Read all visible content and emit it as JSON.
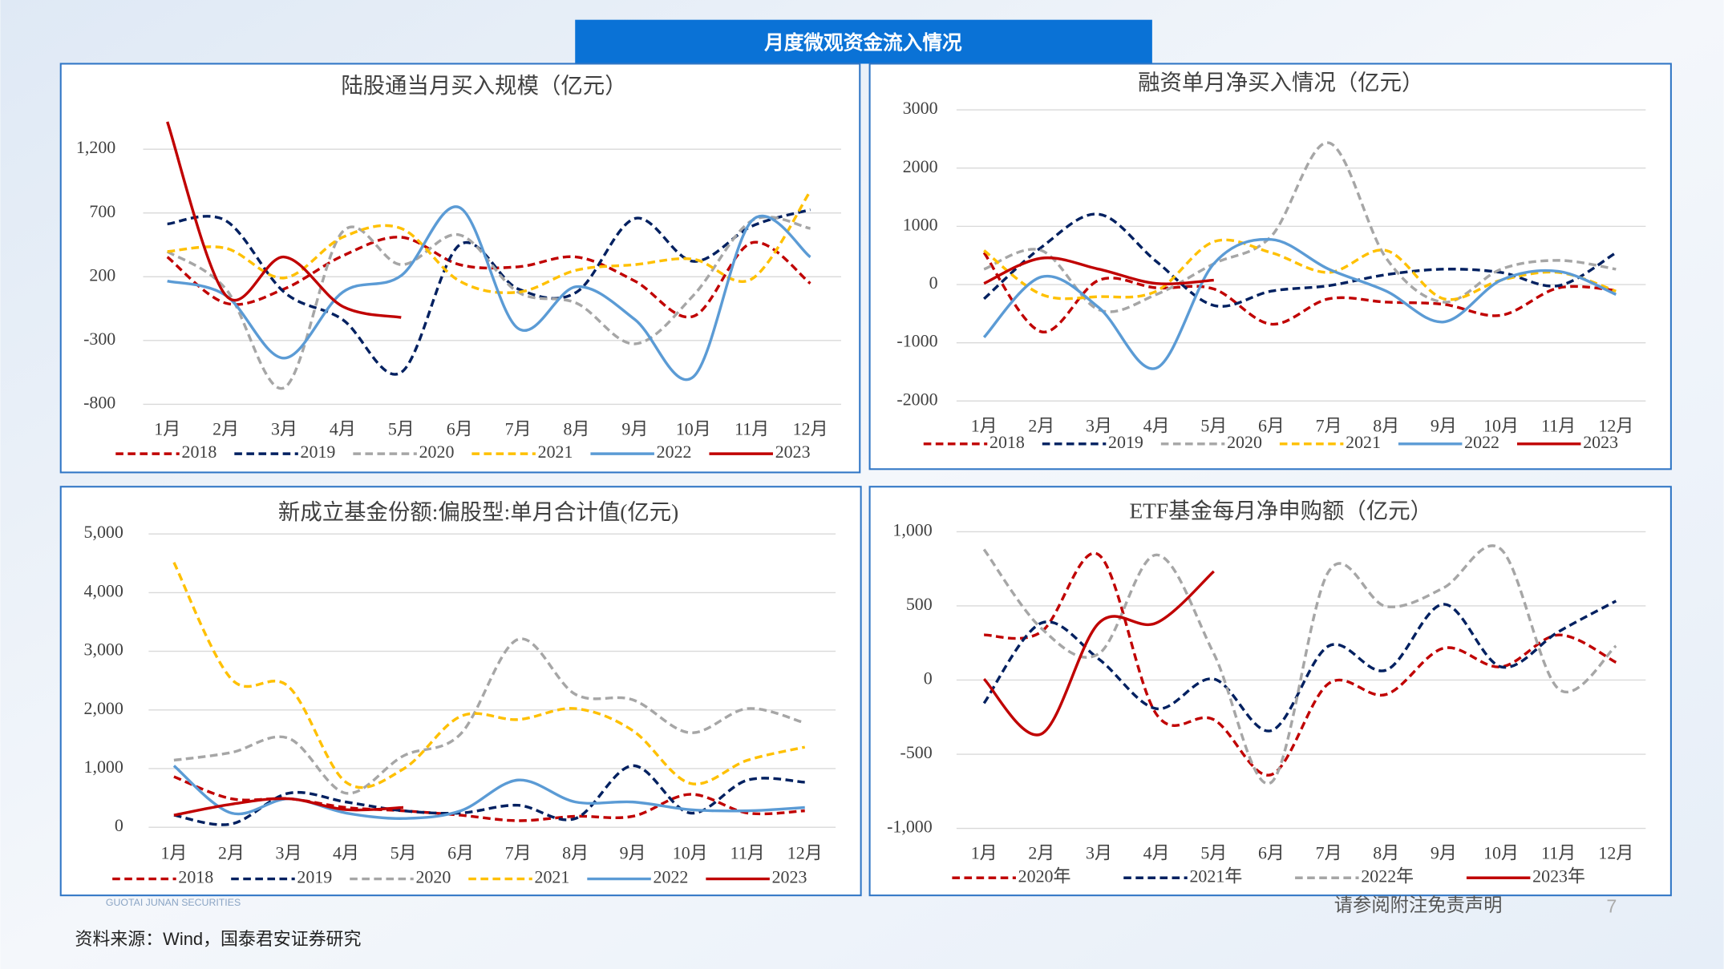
{
  "header": {
    "title": "月度微观资金流入情况"
  },
  "footer": {
    "source": "资料来源：Wind，国泰君安证券研究",
    "disclaimer": "请参阅附注免责声明",
    "page": "7",
    "logo": "GUOTAI JUNAN SECURITIES"
  },
  "chart_data": [
    {
      "type": "line",
      "title": "陆股通当月买入规模（亿元）",
      "categories": [
        "1月",
        "2月",
        "3月",
        "4月",
        "5月",
        "6月",
        "7月",
        "8月",
        "9月",
        "10月",
        "11月",
        "12月"
      ],
      "ylim": [
        -800,
        1500
      ],
      "yticks": [
        -800,
        -300,
        200,
        700,
        {
          "value": 1200,
          "label": "1,200"
        }
      ],
      "grid": true,
      "series": [
        {
          "name": "2018",
          "color": "#c00000",
          "dash": true,
          "values": [
            355,
            -7,
            105,
            364,
            510,
            295,
            278,
            355,
            166,
            -110,
            467,
            148
          ]
        },
        {
          "name": "2019",
          "color": "#002060",
          "dash": true,
          "values": [
            614,
            640,
            79,
            -136,
            -550,
            450,
            105,
            79,
            657,
            321,
            597,
            726
          ]
        },
        {
          "name": "2020",
          "color": "#a6a6a6",
          "dash": true,
          "values": [
            398,
            105,
            -670,
            554,
            295,
            528,
            79,
            -7,
            -326,
            54,
            640,
            579
          ]
        },
        {
          "name": "2021",
          "color": "#ffc000",
          "dash": true,
          "values": [
            398,
            424,
            191,
            510,
            579,
            166,
            79,
            252,
            295,
            338,
            183,
            872
          ]
        },
        {
          "name": "2022",
          "color": "#5b9bd5",
          "dash": false,
          "values": [
            166,
            54,
            -438,
            79,
            209,
            743,
            -205,
            122,
            -136,
            -584,
            640,
            355
          ]
        },
        {
          "name": "2023",
          "color": "#c00000",
          "dash": false,
          "values": [
            1415,
            54,
            355,
            -33,
            -119,
            null,
            null,
            null,
            null,
            null,
            null,
            null
          ]
        }
      ]
    },
    {
      "type": "line",
      "title": "融资单月净买入情况（亿元）",
      "categories": [
        "1月",
        "2月",
        "3月",
        "4月",
        "5月",
        "6月",
        "7月",
        "8月",
        "9月",
        "10月",
        "11月",
        "12月"
      ],
      "ylim": [
        -2000,
        3000
      ],
      "yticks": [
        -2000,
        -1000,
        0,
        1000,
        2000,
        3000
      ],
      "grid": true,
      "series": [
        {
          "name": "2018",
          "color": "#c00000",
          "dash": true,
          "values": [
            547,
            -811,
            75,
            -57,
            -76,
            -680,
            -245,
            -302,
            -340,
            -528,
            -57,
            -100
          ]
        },
        {
          "name": "2019",
          "color": "#002060",
          "dash": true,
          "values": [
            -245,
            641,
            1208,
            396,
            -359,
            -113,
            -19,
            170,
            264,
            208,
            -19,
            547
          ]
        },
        {
          "name": "2020",
          "color": "#a6a6a6",
          "dash": true,
          "values": [
            264,
            585,
            -434,
            -170,
            358,
            830,
            2434,
            453,
            -302,
            264,
            415,
            264
          ]
        },
        {
          "name": "2021",
          "color": "#ffc000",
          "dash": true,
          "values": [
            585,
            -170,
            -208,
            -113,
            736,
            547,
            208,
            585,
            -245,
            75,
            208,
            -113
          ]
        },
        {
          "name": "2022",
          "color": "#5b9bd5",
          "dash": false,
          "values": [
            -906,
            132,
            -397,
            -1434,
            358,
            774,
            264,
            -113,
            -642,
            75,
            226,
            -170
          ]
        },
        {
          "name": "2023",
          "color": "#c00000",
          "dash": false,
          "values": [
            19,
            453,
            264,
            19,
            75,
            null,
            null,
            null,
            null,
            null,
            null,
            null
          ]
        }
      ]
    },
    {
      "type": "line",
      "title": "新成立基金份额:偏股型:单月合计值(亿元)",
      "categories": [
        "1月",
        "2月",
        "3月",
        "4月",
        "5月",
        "6月",
        "7月",
        "8月",
        "9月",
        "10月",
        "11月",
        "12月"
      ],
      "ylim": [
        0,
        5000
      ],
      "yticks": [
        0,
        {
          "value": 1000,
          "label": "1,000"
        },
        {
          "value": 2000,
          "label": "2,000"
        },
        {
          "value": 3000,
          "label": "3,000"
        },
        {
          "value": 4000,
          "label": "4,000"
        },
        {
          "value": 5000,
          "label": "5,000"
        }
      ],
      "grid": true,
      "series": [
        {
          "name": "2018",
          "color": "#c00000",
          "dash": true,
          "values": [
            862,
            487,
            487,
            337,
            281,
            206,
            112,
            187,
            187,
            562,
            243,
            281
          ]
        },
        {
          "name": "2019",
          "color": "#002060",
          "dash": true,
          "values": [
            206,
            56,
            581,
            431,
            281,
            243,
            375,
            150,
            1049,
            243,
            805,
            768
          ]
        },
        {
          "name": "2020",
          "color": "#a6a6a6",
          "dash": true,
          "values": [
            1143,
            1274,
            1517,
            581,
            1217,
            1592,
            3203,
            2266,
            2173,
            1611,
            2023,
            1779
          ]
        },
        {
          "name": "2021",
          "color": "#ffc000",
          "dash": true,
          "values": [
            4514,
            2529,
            2397,
            768,
            993,
            1892,
            1836,
            2023,
            1648,
            749,
            1143,
            1367
          ]
        },
        {
          "name": "2022",
          "color": "#5b9bd5",
          "dash": false,
          "values": [
            1049,
            243,
            487,
            243,
            150,
            281,
            805,
            431,
            431,
            300,
            281,
            337
          ]
        },
        {
          "name": "2023",
          "color": "#c00000",
          "dash": false,
          "values": [
            206,
            393,
            487,
            300,
            337,
            null,
            null,
            null,
            null,
            null,
            null,
            null
          ]
        }
      ]
    },
    {
      "type": "line",
      "title": "ETF基金每月净申购额（亿元）",
      "categories": [
        "1月",
        "2月",
        "3月",
        "4月",
        "5月",
        "6月",
        "7月",
        "8月",
        "9月",
        "10月",
        "11月",
        "12月"
      ],
      "ylim": [
        -1000,
        1000
      ],
      "yticks": [
        {
          "value": -1000,
          "label": "-1,000"
        },
        -500,
        0,
        500,
        {
          "value": 1000,
          "label": "1,000"
        }
      ],
      "grid": true,
      "series": [
        {
          "name": "2020年",
          "color": "#c00000",
          "dash": true,
          "values": [
            304,
            326,
            844,
            -230,
            -267,
            -638,
            -23,
            -97,
            215,
            89,
            304,
            119
          ]
        },
        {
          "name": "2021年",
          "color": "#002060",
          "dash": true,
          "values": [
            -156,
            385,
            141,
            -193,
            7,
            -341,
            230,
            67,
            511,
            89,
            326,
            533
          ]
        },
        {
          "name": "2022年",
          "color": "#a6a6a6",
          "dash": true,
          "values": [
            881,
            348,
            178,
            844,
            178,
            -690,
            733,
            496,
            622,
            881,
            -60,
            230
          ]
        },
        {
          "name": "2023年",
          "color": "#c00000",
          "dash": false,
          "values": [
            7,
            -363,
            385,
            385,
            733,
            null,
            null,
            null,
            null,
            null,
            null,
            null
          ]
        }
      ]
    }
  ]
}
